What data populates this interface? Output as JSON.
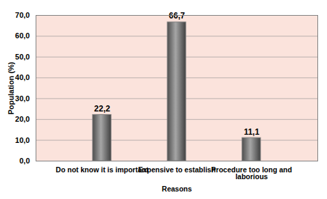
{
  "chart_data": {
    "type": "bar",
    "categories": [
      "Do not know it is important",
      "Expensive to establish",
      "Procedure too long and laborious"
    ],
    "values": [
      22.2,
      66.7,
      11.1
    ],
    "value_labels": [
      "22,2",
      "66,7",
      "11,1"
    ],
    "data_labels": true,
    "color": "#7f7f7f",
    "xlabel": "Reasons",
    "ylabel": "Population (%)",
    "ylim": [
      0,
      70
    ],
    "yticks": [
      {
        "value": 0,
        "label": "0,0"
      },
      {
        "value": 10,
        "label": "10,0"
      },
      {
        "value": 20,
        "label": "20,0"
      },
      {
        "value": 30,
        "label": "30,0"
      },
      {
        "value": 40,
        "label": "40,0"
      },
      {
        "value": 50,
        "label": "50,0"
      },
      {
        "value": 60,
        "label": "60,0"
      },
      {
        "value": 70,
        "label": "70,0"
      }
    ],
    "grid": true
  }
}
